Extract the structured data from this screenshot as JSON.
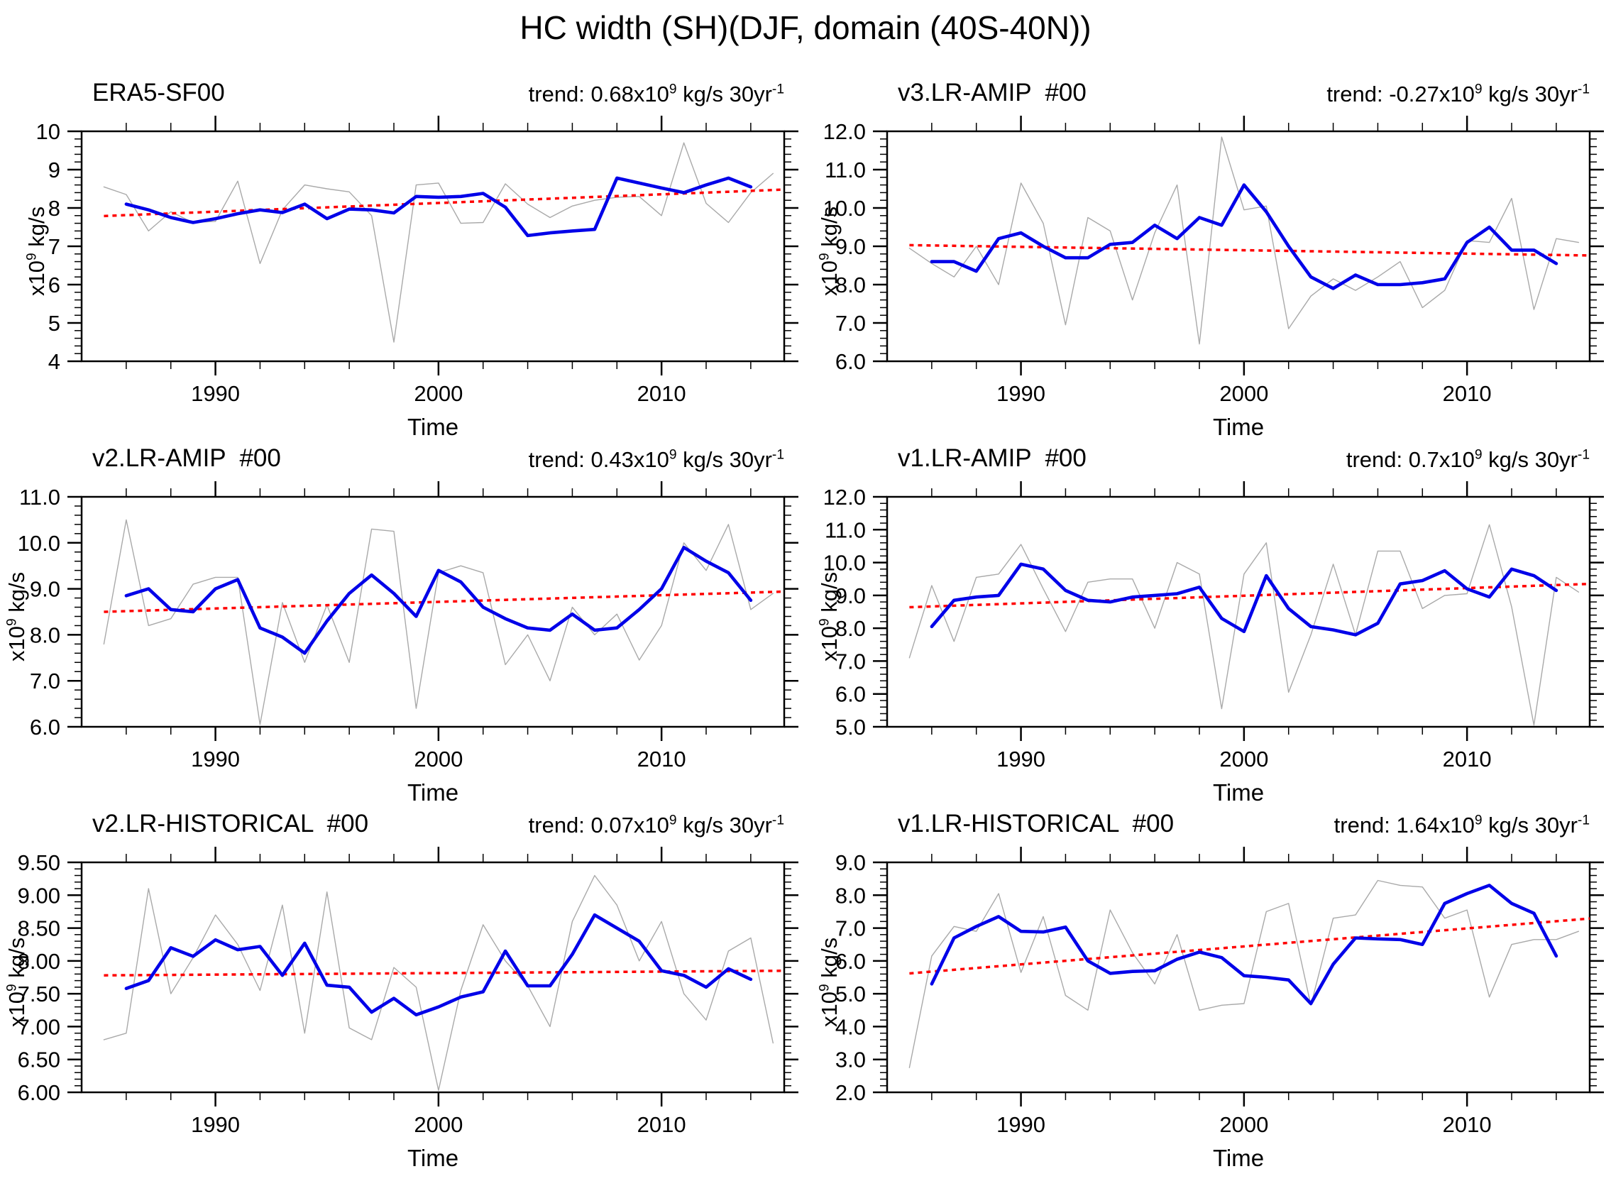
{
  "figure": {
    "title": "HC width (SH)(DJF, domain (40S-40N))"
  },
  "chart_data": [
    {
      "type": "line",
      "title": "ERA5-SF00",
      "trend": {
        "pre": "trend: 0.68x10",
        "exp": "9",
        "mid": " kg/s 30yr",
        "exp2": "-1"
      },
      "ylabel": {
        "pre": "x10",
        "exp": "9",
        "post": " kg/s"
      },
      "xlabel": "Time",
      "xlim": [
        1984,
        2015.5
      ],
      "ylim": [
        4,
        10
      ],
      "yticks": [
        4,
        5,
        6,
        7,
        8,
        9,
        10
      ],
      "ytick_labels": [
        "4",
        "5",
        "6",
        "7",
        "8",
        "9",
        "10"
      ],
      "yminor_step": 0.2,
      "xticks": [
        1990,
        2000,
        2010
      ],
      "xtick_labels": [
        "1990",
        "2000",
        "2010"
      ],
      "xminor_step": 2,
      "legend": "off",
      "grid": "off",
      "series": [
        {
          "name": "annual",
          "color": "#a9a9a9",
          "width": 1.4,
          "start_year": 1985,
          "values": [
            8.55,
            8.35,
            7.4,
            7.9,
            7.62,
            7.65,
            8.7,
            6.55,
            7.95,
            8.6,
            8.5,
            8.42,
            7.8,
            4.5,
            8.6,
            8.65,
            7.6,
            7.62,
            8.63,
            8.1,
            7.75,
            8.05,
            8.2,
            8.28,
            8.3,
            7.8,
            9.7,
            8.12,
            7.62,
            8.4,
            8.9
          ]
        },
        {
          "name": "smoothed",
          "color": "#0000e8",
          "width": 4.6,
          "start_year": 1986,
          "values": [
            8.1,
            7.95,
            7.75,
            7.62,
            7.72,
            7.85,
            7.95,
            7.88,
            8.1,
            7.72,
            7.97,
            7.95,
            7.87,
            8.3,
            8.28,
            8.3,
            8.38,
            8.02,
            7.28,
            7.35,
            7.4,
            7.44,
            8.78,
            8.65,
            8.52,
            8.4,
            8.6,
            8.78,
            8.55
          ]
        }
      ],
      "trend_line": {
        "name": "linear-trend",
        "color": "#ff0000",
        "x": [
          1985,
          2015.5
        ],
        "y": [
          7.79,
          8.48
        ]
      }
    },
    {
      "type": "line",
      "title": "v3.LR-AMIP  #00",
      "trend": {
        "pre": "trend: -0.27x10",
        "exp": "9",
        "mid": " kg/s 30yr",
        "exp2": "-1"
      },
      "ylabel": {
        "pre": "x10",
        "exp": "9",
        "post": " kg/s"
      },
      "xlabel": "Time",
      "xlim": [
        1984,
        2015.5
      ],
      "ylim": [
        6,
        12
      ],
      "yticks": [
        6,
        7,
        8,
        9,
        10,
        11,
        12
      ],
      "ytick_labels": [
        "6.0",
        "7.0",
        "8.0",
        "9.0",
        "10.0",
        "11.0",
        "12.0"
      ],
      "yminor_step": 0.2,
      "xticks": [
        1990,
        2000,
        2010
      ],
      "xtick_labels": [
        "1990",
        "2000",
        "2010"
      ],
      "xminor_step": 2,
      "legend": "off",
      "grid": "off",
      "series": [
        {
          "name": "annual",
          "color": "#a9a9a9",
          "width": 1.4,
          "start_year": 1985,
          "values": [
            8.95,
            8.55,
            8.2,
            9.0,
            8.0,
            10.65,
            9.6,
            6.95,
            9.75,
            9.4,
            7.6,
            9.35,
            10.6,
            6.45,
            11.85,
            9.95,
            10.05,
            6.85,
            7.7,
            8.15,
            7.85,
            8.2,
            8.6,
            7.4,
            7.85,
            9.15,
            9.1,
            10.25,
            7.35,
            9.2,
            9.1
          ]
        },
        {
          "name": "smoothed",
          "color": "#0000e8",
          "width": 4.6,
          "start_year": 1986,
          "values": [
            8.6,
            8.6,
            8.35,
            9.2,
            9.35,
            9.0,
            8.7,
            8.7,
            9.05,
            9.1,
            9.55,
            9.2,
            9.75,
            9.55,
            10.6,
            9.9,
            9.0,
            8.2,
            7.9,
            8.25,
            8.0,
            8.0,
            8.05,
            8.15,
            9.1,
            9.5,
            8.9,
            8.9,
            8.55
          ]
        }
      ],
      "trend_line": {
        "name": "linear-trend",
        "color": "#ff0000",
        "x": [
          1985,
          2015.5
        ],
        "y": [
          9.03,
          8.76
        ]
      }
    },
    {
      "type": "line",
      "title": "v2.LR-AMIP  #00",
      "trend": {
        "pre": "trend: 0.43x10",
        "exp": "9",
        "mid": " kg/s 30yr",
        "exp2": "-1"
      },
      "ylabel": {
        "pre": "x10",
        "exp": "9",
        "post": " kg/s"
      },
      "xlabel": "Time",
      "xlim": [
        1984,
        2015.5
      ],
      "ylim": [
        6,
        11
      ],
      "yticks": [
        6,
        7,
        8,
        9,
        10,
        11
      ],
      "ytick_labels": [
        "6.0",
        "7.0",
        "8.0",
        "9.0",
        "10.0",
        "11.0"
      ],
      "yminor_step": 0.2,
      "xticks": [
        1990,
        2000,
        2010
      ],
      "xtick_labels": [
        "1990",
        "2000",
        "2010"
      ],
      "xminor_step": 2,
      "legend": "off",
      "grid": "off",
      "series": [
        {
          "name": "annual",
          "color": "#a9a9a9",
          "width": 1.4,
          "start_year": 1985,
          "values": [
            7.8,
            10.5,
            8.2,
            8.35,
            9.1,
            9.25,
            9.25,
            6.05,
            8.7,
            7.4,
            8.65,
            7.4,
            10.3,
            10.25,
            6.4,
            9.35,
            9.5,
            9.35,
            7.35,
            8.0,
            7.0,
            8.6,
            8.0,
            8.45,
            7.45,
            8.2,
            10.0,
            9.4,
            10.4,
            8.55,
            8.9
          ]
        },
        {
          "name": "smoothed",
          "color": "#0000e8",
          "width": 4.6,
          "start_year": 1986,
          "values": [
            8.85,
            9.0,
            8.55,
            8.5,
            9.0,
            9.2,
            8.15,
            7.95,
            7.6,
            8.3,
            8.9,
            9.3,
            8.9,
            8.4,
            9.4,
            9.15,
            8.6,
            8.35,
            8.15,
            8.1,
            8.45,
            8.1,
            8.15,
            8.55,
            9.0,
            9.9,
            9.6,
            9.35,
            8.75
          ]
        }
      ],
      "trend_line": {
        "name": "linear-trend",
        "color": "#ff0000",
        "x": [
          1985,
          2015.5
        ],
        "y": [
          8.5,
          8.94
        ]
      }
    },
    {
      "type": "line",
      "title": "v1.LR-AMIP  #00",
      "trend": {
        "pre": "trend: 0.7x10",
        "exp": "9",
        "mid": " kg/s 30yr",
        "exp2": "-1"
      },
      "ylabel": {
        "pre": "x10",
        "exp": "9",
        "post": " kg/s"
      },
      "xlabel": "Time",
      "xlim": [
        1984,
        2015.5
      ],
      "ylim": [
        5,
        12
      ],
      "yticks": [
        5,
        6,
        7,
        8,
        9,
        10,
        11,
        12
      ],
      "ytick_labels": [
        "5.0",
        "6.0",
        "7.0",
        "8.0",
        "9.0",
        "10.0",
        "11.0",
        "12.0"
      ],
      "yminor_step": 0.2,
      "xticks": [
        1990,
        2000,
        2010
      ],
      "xtick_labels": [
        "1990",
        "2000",
        "2010"
      ],
      "xminor_step": 2,
      "legend": "off",
      "grid": "off",
      "series": [
        {
          "name": "annual",
          "color": "#a9a9a9",
          "width": 1.4,
          "start_year": 1985,
          "values": [
            7.1,
            9.3,
            7.6,
            9.55,
            9.65,
            10.55,
            9.2,
            7.9,
            9.4,
            9.5,
            9.5,
            8.0,
            10.0,
            9.65,
            5.55,
            9.65,
            10.6,
            6.05,
            7.8,
            9.95,
            7.8,
            10.35,
            10.35,
            8.6,
            9.0,
            9.05,
            11.15,
            8.65,
            5.05,
            9.55,
            9.1
          ]
        },
        {
          "name": "smoothed",
          "color": "#0000e8",
          "width": 4.6,
          "start_year": 1986,
          "values": [
            8.05,
            8.85,
            8.95,
            9.0,
            9.95,
            9.8,
            9.15,
            8.85,
            8.8,
            8.95,
            9.0,
            9.05,
            9.25,
            8.3,
            7.9,
            9.6,
            8.6,
            8.05,
            7.95,
            7.8,
            8.15,
            9.35,
            9.45,
            9.75,
            9.2,
            8.95,
            9.8,
            9.6,
            9.15
          ]
        }
      ],
      "trend_line": {
        "name": "linear-trend",
        "color": "#ff0000",
        "x": [
          1985,
          2015.5
        ],
        "y": [
          8.64,
          9.35
        ]
      }
    },
    {
      "type": "line",
      "title": "v2.LR-HISTORICAL  #00",
      "trend": {
        "pre": "trend: 0.07x10",
        "exp": "9",
        "mid": " kg/s 30yr",
        "exp2": "-1"
      },
      "ylabel": {
        "pre": "x10",
        "exp": "9",
        "post": " kg/s"
      },
      "xlabel": "Time",
      "xlim": [
        1984,
        2015.5
      ],
      "ylim": [
        6,
        9.5
      ],
      "yticks": [
        6,
        6.5,
        7,
        7.5,
        8,
        8.5,
        9,
        9.5
      ],
      "ytick_labels": [
        "6.00",
        "6.50",
        "7.00",
        "7.50",
        "8.00",
        "8.50",
        "9.00",
        "9.50"
      ],
      "yminor_step": 0.1,
      "xticks": [
        1990,
        2000,
        2010
      ],
      "xtick_labels": [
        "1990",
        "2000",
        "2010"
      ],
      "xminor_step": 2,
      "legend": "off",
      "grid": "off",
      "series": [
        {
          "name": "annual",
          "color": "#a9a9a9",
          "width": 1.4,
          "start_year": 1985,
          "values": [
            6.8,
            6.9,
            9.1,
            7.5,
            8.05,
            8.7,
            8.25,
            7.55,
            8.85,
            6.9,
            9.05,
            6.98,
            6.8,
            7.9,
            7.6,
            6.03,
            7.55,
            8.55,
            8.0,
            7.62,
            7.0,
            8.6,
            9.3,
            8.85,
            8.0,
            8.6,
            7.5,
            7.1,
            8.15,
            8.35,
            6.75
          ]
        },
        {
          "name": "smoothed",
          "color": "#0000e8",
          "width": 4.6,
          "start_year": 1986,
          "values": [
            7.58,
            7.7,
            8.2,
            8.07,
            8.32,
            8.17,
            8.22,
            7.78,
            8.27,
            7.63,
            7.6,
            7.22,
            7.43,
            7.18,
            7.3,
            7.45,
            7.53,
            8.15,
            7.62,
            7.62,
            8.1,
            8.7,
            8.5,
            8.3,
            7.85,
            7.78,
            7.6,
            7.88,
            7.72
          ]
        }
      ],
      "trend_line": {
        "name": "linear-trend",
        "color": "#ff0000",
        "x": [
          1985,
          2015.5
        ],
        "y": [
          7.78,
          7.85
        ]
      }
    },
    {
      "type": "line",
      "title": "v1.LR-HISTORICAL  #00",
      "trend": {
        "pre": "trend: 1.64x10",
        "exp": "9",
        "mid": " kg/s 30yr",
        "exp2": "-1"
      },
      "ylabel": {
        "pre": "x10",
        "exp": "9",
        "post": " kg/s"
      },
      "xlabel": "Time",
      "xlim": [
        1984,
        2015.5
      ],
      "ylim": [
        2,
        9
      ],
      "yticks": [
        2,
        3,
        4,
        5,
        6,
        7,
        8,
        9
      ],
      "ytick_labels": [
        "2.0",
        "3.0",
        "4.0",
        "5.0",
        "6.0",
        "7.0",
        "8.0",
        "9.0"
      ],
      "yminor_step": 0.2,
      "xticks": [
        1990,
        2000,
        2010
      ],
      "xtick_labels": [
        "1990",
        "2000",
        "2010"
      ],
      "xminor_step": 2,
      "legend": "off",
      "grid": "off",
      "series": [
        {
          "name": "annual",
          "color": "#a9a9a9",
          "width": 1.4,
          "start_year": 1985,
          "values": [
            2.75,
            6.15,
            7.05,
            6.9,
            8.05,
            5.65,
            7.35,
            4.95,
            4.5,
            7.55,
            6.25,
            5.3,
            6.8,
            4.5,
            4.65,
            4.7,
            7.5,
            7.75,
            4.65,
            7.3,
            7.4,
            8.45,
            8.3,
            8.25,
            7.3,
            7.55,
            4.9,
            6.5,
            6.65,
            6.65,
            6.9
          ]
        },
        {
          "name": "smoothed",
          "color": "#0000e8",
          "width": 4.6,
          "start_year": 1986,
          "values": [
            5.3,
            6.7,
            7.05,
            7.35,
            6.9,
            6.88,
            7.03,
            6.0,
            5.62,
            5.68,
            5.7,
            6.05,
            6.27,
            6.1,
            5.55,
            5.5,
            5.42,
            4.7,
            5.9,
            6.7,
            6.67,
            6.65,
            6.5,
            7.75,
            8.05,
            8.3,
            7.75,
            7.45,
            6.15
          ]
        }
      ],
      "trend_line": {
        "name": "linear-trend",
        "color": "#ff0000",
        "x": [
          1985,
          2015.5
        ],
        "y": [
          5.62,
          7.29
        ]
      }
    }
  ]
}
